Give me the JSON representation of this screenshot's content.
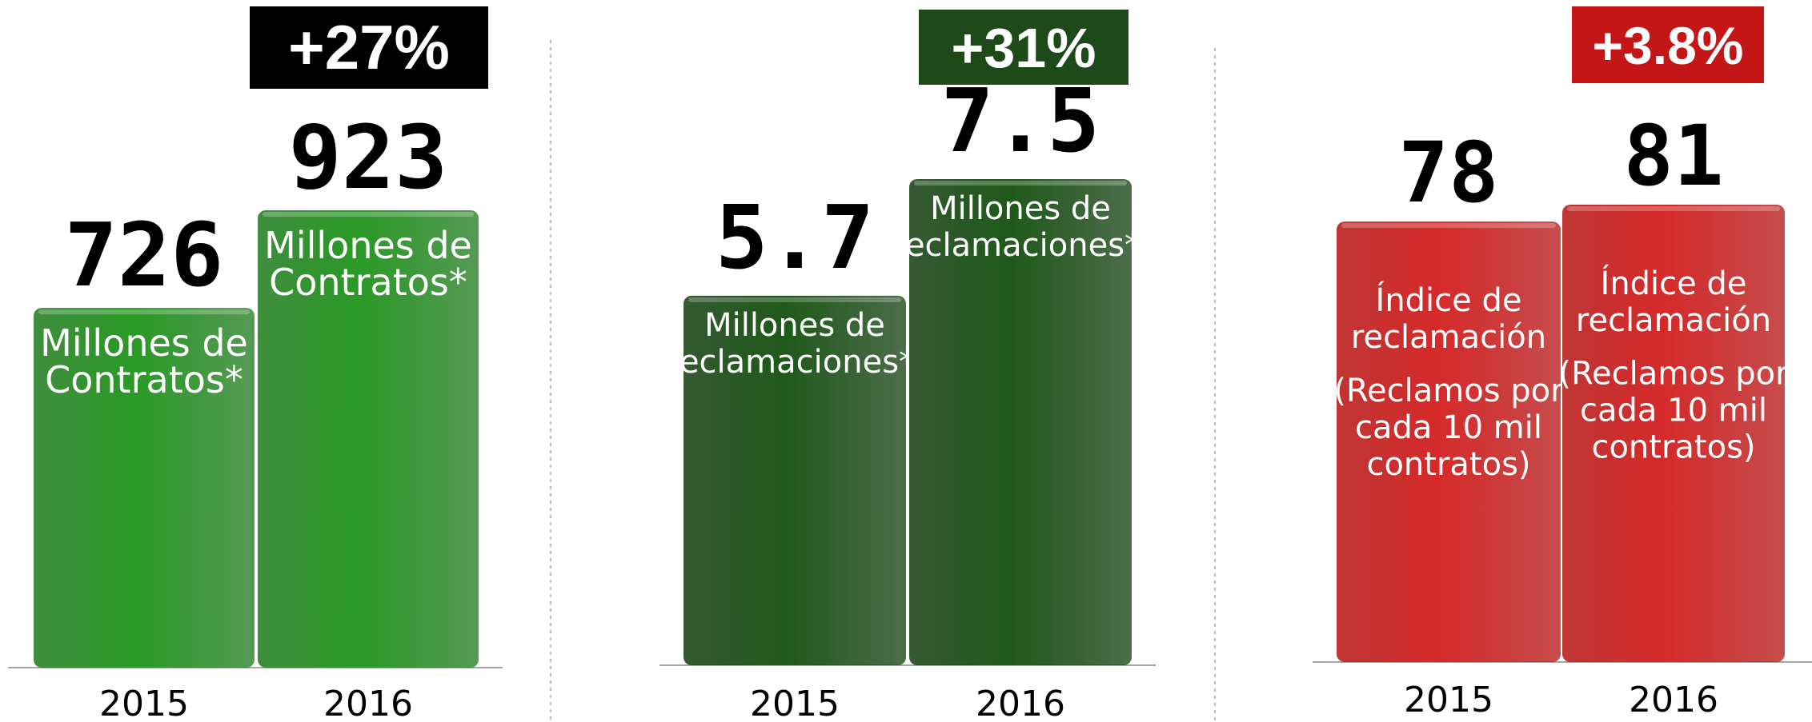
{
  "chart_data": [
    {
      "type": "bar",
      "categories": [
        "2015",
        "2016"
      ],
      "values": [
        726,
        923
      ],
      "value_labels": [
        "726",
        "923"
      ],
      "bar_labels": [
        [
          "Millones de",
          "Contratos*"
        ],
        [
          "Millones de",
          "Contratos*"
        ]
      ],
      "change_badge": "+27%",
      "colors": {
        "bar": "#1e7a1c",
        "bar_light": "#2a9a26",
        "badge": "#000000"
      }
    },
    {
      "type": "bar",
      "categories": [
        "2015",
        "2016"
      ],
      "values": [
        5.7,
        7.5
      ],
      "value_labels": [
        "5.7",
        "7.5"
      ],
      "bar_labels": [
        [
          "Millones de",
          "Reclamaciones**"
        ],
        [
          "Millones de",
          "Reclamaciones**"
        ]
      ],
      "change_badge": "+31%",
      "colors": {
        "bar": "#123d0f",
        "bar_light": "#1f5a1a",
        "badge": "#1e4a1a"
      }
    },
    {
      "type": "bar",
      "categories": [
        "2015",
        "2016"
      ],
      "values": [
        78,
        81
      ],
      "value_labels": [
        "78",
        "81"
      ],
      "bar_labels": [
        [
          "Índice de",
          "reclamación",
          "",
          "(Reclamos por",
          "cada 10 mil",
          "contratos)"
        ],
        [
          "Índice de",
          "reclamación",
          "",
          "(Reclamos por",
          "cada 10 mil",
          "contratos)"
        ]
      ],
      "change_badge": "+3.8%",
      "colors": {
        "bar": "#b51212",
        "bar_light": "#d62a2a",
        "badge": "#c41616"
      }
    }
  ]
}
